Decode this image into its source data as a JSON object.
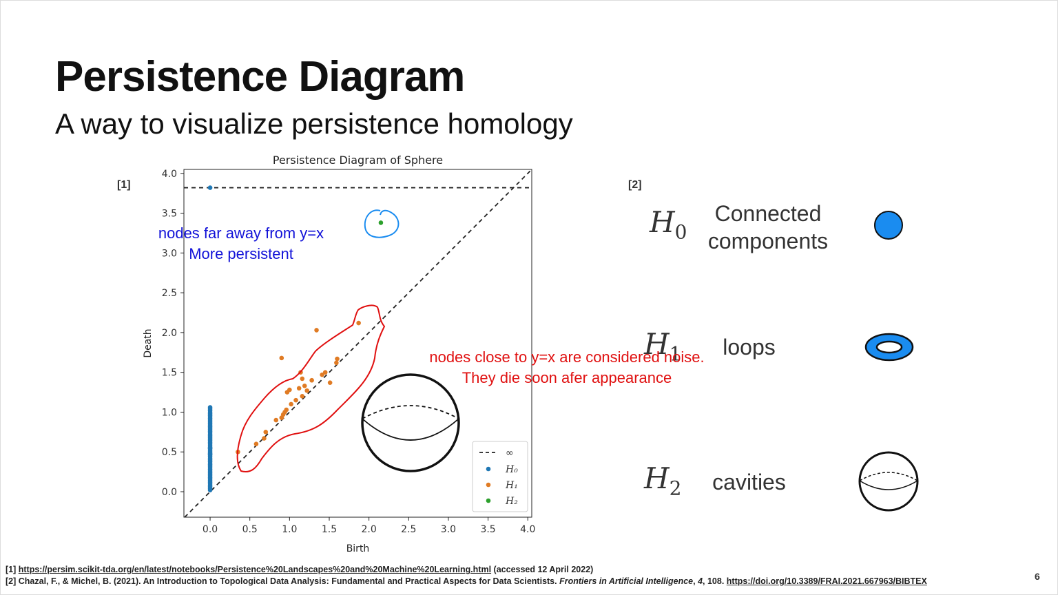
{
  "slide": {
    "title": "Persistence Diagram",
    "subtitle": "A way to visualize persistence homology",
    "ref1_tag": "[1]",
    "ref2_tag": "[2]",
    "page_number": "6"
  },
  "annotations": {
    "blue_line1": "nodes far away from y=x",
    "blue_line2": "More persistent",
    "red_line1": "nodes close to y=x are considered noise.",
    "red_line2": "They die soon afer appearance"
  },
  "homology": [
    {
      "symbol": "H",
      "sub": "0",
      "desc_line1": "Connected",
      "desc_line2": "components",
      "icon": "filled-circle-icon"
    },
    {
      "symbol": "H",
      "sub": "1",
      "desc_line1": "loops",
      "desc_line2": "",
      "icon": "torus-icon"
    },
    {
      "symbol": "H",
      "sub": "2",
      "desc_line1": "cavities",
      "desc_line2": "",
      "icon": "sphere-icon"
    }
  ],
  "colors": {
    "h0": "#1f77b4",
    "h1": "#e07b24",
    "h2": "#2ca02c",
    "icon_blue": "#1a8cf0",
    "annot_blue": "#1212d8",
    "annot_red": "#e01010"
  },
  "chart_data": {
    "type": "scatter",
    "title": "Persistence Diagram of Sphere",
    "xlabel": "Birth",
    "ylabel": "Death",
    "xlim": [
      -0.33,
      4.05
    ],
    "ylim": [
      -0.32,
      4.05
    ],
    "xticks": [
      "0.0",
      "0.5",
      "1.0",
      "1.5",
      "2.0",
      "2.5",
      "3.0",
      "3.5",
      "4.0"
    ],
    "yticks": [
      "0.0",
      "0.5",
      "1.0",
      "1.5",
      "2.0",
      "2.5",
      "3.0",
      "3.5",
      "4.0"
    ],
    "infinity_level": 3.82,
    "diagonal": true,
    "legend_position": "bottom-right",
    "legend": [
      "∞",
      "H₀",
      "H₁",
      "H₂"
    ],
    "series": [
      {
        "name": "H₀",
        "x": [
          0,
          0,
          0,
          0,
          0,
          0,
          0,
          0,
          0,
          0,
          0,
          0,
          0,
          0,
          0,
          0,
          0,
          0,
          0,
          0,
          0,
          0,
          0,
          0,
          0,
          0,
          0,
          0,
          0,
          0,
          0,
          0,
          0,
          0,
          0,
          0,
          0,
          0,
          0,
          0,
          0,
          0,
          0,
          0,
          0,
          0,
          0,
          0,
          0,
          0,
          0,
          0,
          0,
          0,
          0,
          0
        ],
        "y": [
          3.82,
          0.02,
          0.04,
          0.06,
          0.08,
          0.1,
          0.12,
          0.14,
          0.16,
          0.18,
          0.2,
          0.22,
          0.24,
          0.26,
          0.28,
          0.3,
          0.32,
          0.34,
          0.36,
          0.38,
          0.4,
          0.42,
          0.44,
          0.46,
          0.48,
          0.5,
          0.52,
          0.54,
          0.56,
          0.58,
          0.6,
          0.62,
          0.64,
          0.66,
          0.68,
          0.7,
          0.72,
          0.74,
          0.76,
          0.78,
          0.8,
          0.82,
          0.84,
          0.86,
          0.88,
          0.9,
          0.92,
          0.94,
          0.96,
          0.98,
          1.0,
          1.02,
          1.04,
          1.06,
          0.47,
          0.55
        ]
      },
      {
        "name": "H₁",
        "x": [
          0.35,
          0.58,
          0.68,
          0.7,
          0.83,
          0.9,
          0.92,
          0.94,
          0.96,
          0.97,
          1.0,
          1.02,
          1.08,
          1.12,
          1.14,
          1.16,
          1.19,
          1.22,
          1.28,
          1.34,
          1.41,
          1.51,
          1.59,
          1.6,
          1.87,
          0.9,
          1.16,
          1.45
        ],
        "y": [
          0.5,
          0.6,
          0.67,
          0.75,
          0.9,
          0.93,
          0.97,
          1.0,
          1.03,
          1.25,
          1.28,
          1.1,
          1.15,
          1.3,
          1.5,
          1.2,
          1.33,
          1.27,
          1.4,
          2.03,
          1.47,
          1.37,
          1.62,
          1.67,
          2.12,
          1.68,
          1.42,
          1.5
        ]
      },
      {
        "name": "H₂",
        "x": [
          2.15
        ],
        "y": [
          3.38
        ]
      }
    ]
  }
}
